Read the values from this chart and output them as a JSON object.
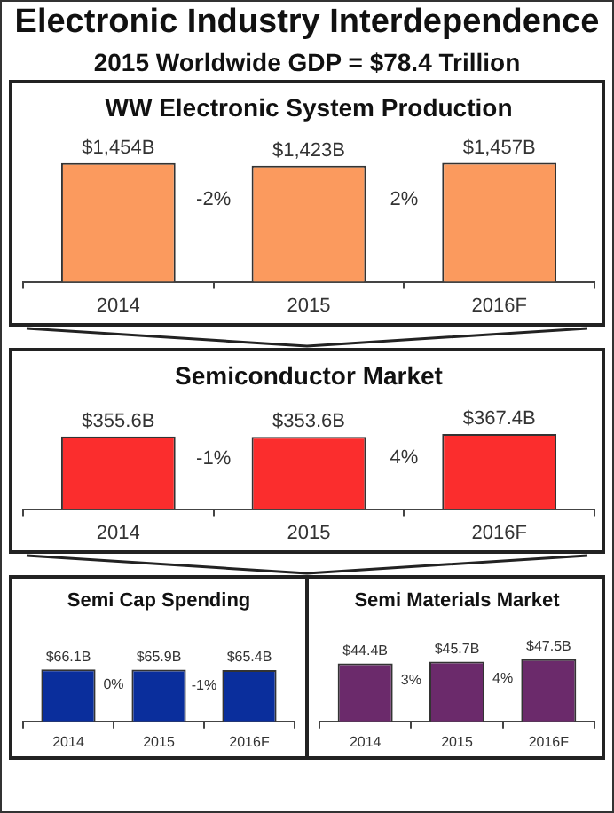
{
  "chart_data": [
    {
      "type": "other",
      "title": "Electronic Industry Interdependence",
      "subtitle": "2015 Worldwide GDP = $78.4 Trillion"
    },
    {
      "type": "bar",
      "title": "WW Electronic System Production",
      "categories": [
        "2014",
        "2015",
        "2016F"
      ],
      "values": [
        1454,
        1423,
        1457
      ],
      "value_labels": [
        "$1,454B",
        "$1,423B",
        "$1,457B"
      ],
      "color": "#fb9a5e",
      "tick_labels": "x",
      "annotations": [
        "-2%",
        "2%"
      ]
    },
    {
      "type": "bar",
      "title": "Semiconductor Market",
      "categories": [
        "2014",
        "2015",
        "2016F"
      ],
      "values": [
        355.6,
        353.6,
        367.4
      ],
      "value_labels": [
        "$355.6B",
        "$353.6B",
        "$367.4B"
      ],
      "color": "#fb2d2d",
      "tick_labels": "x",
      "annotations": [
        "-1%",
        "4%"
      ]
    },
    {
      "type": "bar",
      "title": "Semi Cap Spending",
      "categories": [
        "2014",
        "2015",
        "2016F"
      ],
      "values": [
        66.1,
        65.9,
        65.4
      ],
      "value_labels": [
        "$66.1B",
        "$65.9B",
        "$65.4B"
      ],
      "color": "#0a2e9c",
      "tick_labels": "x",
      "annotations": [
        "0%",
        "-1%"
      ]
    },
    {
      "type": "bar",
      "title": "Semi Materials Market",
      "categories": [
        "2014",
        "2015",
        "2016F"
      ],
      "values": [
        44.4,
        45.7,
        47.5
      ],
      "value_labels": [
        "$44.4B",
        "$45.7B",
        "$47.5B"
      ],
      "color": "#6b2a6b",
      "tick_labels": "x",
      "annotations": [
        "3%",
        "4%"
      ]
    }
  ]
}
